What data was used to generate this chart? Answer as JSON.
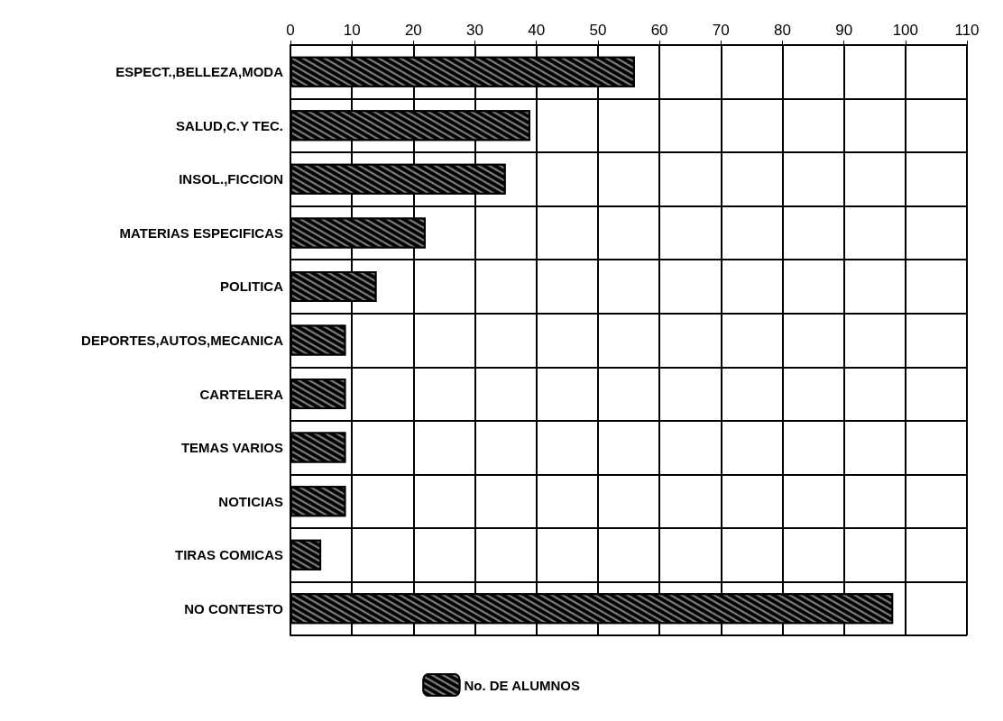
{
  "chart_data": {
    "type": "bar",
    "orientation": "horizontal",
    "categories": [
      "ESPECT.,BELLEZA,MODA",
      "SALUD,C.Y TEC.",
      "INSOL.,FICCION",
      "MATERIAS ESPECIFICAS",
      "POLITICA",
      "DEPORTES,AUTOS,MECANICA",
      "CARTELERA",
      "TEMAS VARIOS",
      "NOTICIAS",
      "TIRAS COMICAS",
      "NO CONTESTO"
    ],
    "series": [
      {
        "name": "No. DE ALUMNOS",
        "color": "#000000",
        "values": [
          56,
          39,
          35,
          22,
          14,
          9,
          9,
          9,
          9,
          5,
          98
        ]
      }
    ],
    "xlim": [
      0,
      110
    ],
    "xticks": [
      0,
      10,
      20,
      30,
      40,
      50,
      60,
      70,
      80,
      90,
      100,
      110
    ],
    "grid": true,
    "legend": "bottom"
  }
}
